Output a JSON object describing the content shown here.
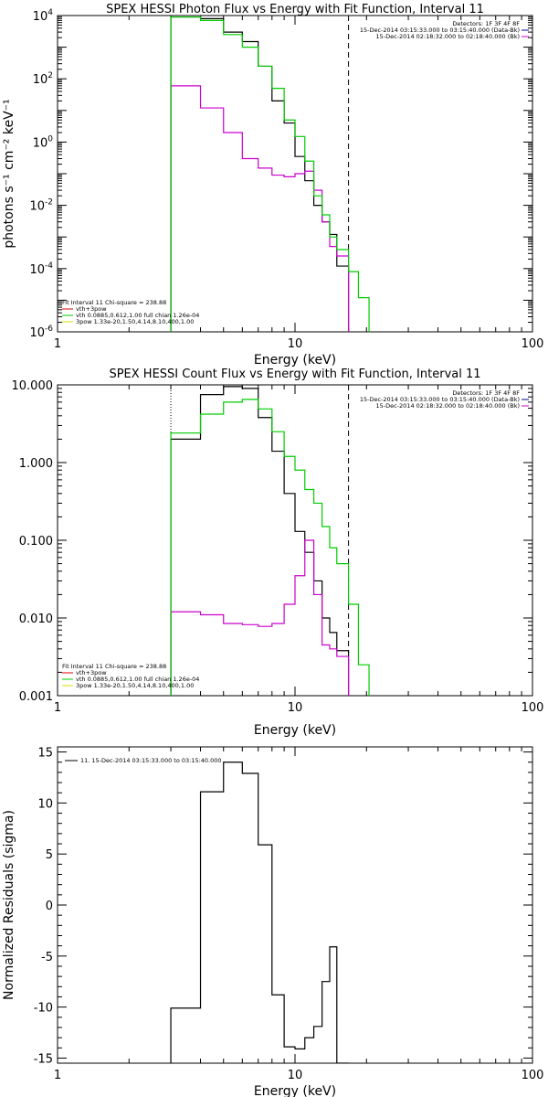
{
  "colors": {
    "black": "#000000",
    "green": "#00cc00",
    "magenta": "#cc00cc",
    "red": "#dd0000",
    "yellow": "#dddd00",
    "navy": "#000088"
  },
  "chart_data": [
    {
      "id": "photon",
      "type": "line",
      "title": "SPEX HESSI Photon Flux vs Energy with Fit Function, Interval 11",
      "xlabel": "Energy (keV)",
      "ylabel": "photons s⁻¹ cm⁻² keV⁻¹",
      "x_scale": "log",
      "y_scale": "log",
      "xlim": [
        1,
        100
      ],
      "ylim": [
        1e-06,
        10000.0
      ],
      "x_ticks": [
        {
          "v": 1,
          "label": "1"
        },
        {
          "v": 10,
          "label": "10"
        },
        {
          "v": 100,
          "label": "100"
        }
      ],
      "y_ticks": [
        {
          "v": 1e-06,
          "base": "10",
          "exp": "-6"
        },
        {
          "v": 0.0001,
          "base": "10",
          "exp": "-4"
        },
        {
          "v": 0.01,
          "base": "10",
          "exp": "-2"
        },
        {
          "v": 1,
          "base": "10",
          "exp": "0"
        },
        {
          "v": 100,
          "base": "10",
          "exp": "2"
        },
        {
          "v": 10000.0,
          "base": "10",
          "exp": "4"
        }
      ],
      "vlines": [
        {
          "x": 3.0,
          "style": "dotted"
        },
        {
          "x": 16.8,
          "style": "dashed"
        }
      ],
      "info_lines": [
        "Detectors: 1F 3F 4F 8F",
        "15-Dec-2014 03:15:33.000 to 03:15:40.000 (Data-Bk)",
        "15-Dec-2014 02:18:32.000 to 02:18:40.000 (Bk)"
      ],
      "legend_title": "Fit Interval 11    Chi-square = 238.88",
      "legend": [
        {
          "text": "vth+3pow",
          "color": "red"
        },
        {
          "text": "vth 0.0885,0.612,1.00  full chian 1.26e-04",
          "color": "green"
        },
        {
          "text": "3pow 1.33e-20,1.50,4.14,8.10,400,1.00",
          "color": "yellow"
        }
      ],
      "series": [
        {
          "name": "Data-Bk",
          "color": "black",
          "edges": [
            3.0,
            4.0,
            5.0,
            6.0,
            7.0,
            8.0,
            9.0,
            10.0,
            11.0,
            12.0,
            13.0,
            14.0,
            15.0,
            16.8
          ],
          "values": [
            9000,
            8000,
            3000,
            1500,
            250,
            20,
            4,
            0.35,
            0.06,
            0.01,
            0.003,
            0.0012,
            0.00012
          ]
        },
        {
          "name": "Bk",
          "color": "magenta",
          "edges": [
            3.0,
            4.0,
            5.0,
            6.0,
            7.0,
            8.0,
            9.0,
            10.0,
            11.0,
            12.0,
            13.0,
            14.0,
            15.0,
            16.8
          ],
          "values": [
            60,
            12,
            2,
            0.3,
            0.15,
            0.09,
            0.08,
            0.1,
            0.12,
            0.03,
            0.003,
            0.0005,
            0.00025
          ]
        },
        {
          "name": "Fit",
          "color": "green",
          "edges": [
            3.0,
            4.0,
            5.0,
            6.0,
            7.0,
            8.0,
            9.0,
            10.0,
            11.0,
            12.0,
            13.0,
            14.0,
            15.0,
            16.8,
            18.5,
            20.5
          ],
          "values": [
            9000,
            7000,
            2500,
            1000,
            250,
            50,
            5,
            1.5,
            0.25,
            0.02,
            0.005,
            0.001,
            0.0004,
            8e-05,
            1.2e-05
          ]
        }
      ]
    },
    {
      "id": "count",
      "type": "line",
      "title": "SPEX HESSI Count Flux vs Energy with Fit Function, Interval 11",
      "xlabel": "Energy (keV)",
      "ylabel": "",
      "x_scale": "log",
      "y_scale": "log",
      "xlim": [
        1,
        100
      ],
      "ylim": [
        0.001,
        10
      ],
      "x_ticks": [
        {
          "v": 1,
          "label": "1"
        },
        {
          "v": 10,
          "label": "10"
        },
        {
          "v": 100,
          "label": "100"
        }
      ],
      "y_ticks": [
        {
          "v": 0.001,
          "label": "0.001"
        },
        {
          "v": 0.01,
          "label": "0.010"
        },
        {
          "v": 0.1,
          "label": "0.100"
        },
        {
          "v": 1,
          "label": "1.000"
        },
        {
          "v": 10,
          "label": "10.000"
        }
      ],
      "vlines": [
        {
          "x": 3.0,
          "style": "dotted"
        },
        {
          "x": 16.8,
          "style": "dashed"
        }
      ],
      "info_lines": [
        "Detectors: 1F 3F 4F 8F",
        "15-Dec-2014 03:15:33.000 to 03:15:40.000 (Data-Bk)",
        "15-Dec-2014 02:18:32.000 to 02:18:40.000 (Bk)"
      ],
      "legend_title": "Fit Interval 11    Chi-square = 238.88",
      "legend": [
        {
          "text": "vth+3pow",
          "color": "red"
        },
        {
          "text": "vth 0.0885,0.612,1.00  full chian 1.26e-04",
          "color": "green"
        },
        {
          "text": "3pow 1.33e-20,1.50,4.14,8.10,400,1.00",
          "color": "yellow"
        }
      ],
      "series": [
        {
          "name": "Data-Bk",
          "color": "black",
          "edges": [
            3.0,
            4.0,
            5.0,
            6.0,
            7.0,
            8.0,
            9.0,
            10.0,
            11.0,
            12.0,
            13.0,
            14.0,
            15.0,
            16.8
          ],
          "values": [
            2.0,
            7.5,
            9.5,
            9.0,
            3.8,
            1.4,
            0.4,
            0.13,
            0.07,
            0.03,
            0.01,
            0.0065,
            0.0038
          ]
        },
        {
          "name": "Bk",
          "color": "magenta",
          "edges": [
            3.0,
            4.0,
            5.0,
            6.0,
            7.0,
            8.0,
            9.0,
            10.0,
            11.0,
            12.0,
            13.0,
            14.0,
            15.0,
            16.8
          ],
          "values": [
            0.012,
            0.011,
            0.0085,
            0.0082,
            0.0078,
            0.0085,
            0.015,
            0.035,
            0.1,
            0.02,
            0.0045,
            0.004,
            0.0032
          ]
        },
        {
          "name": "Fit",
          "color": "green",
          "edges": [
            3.0,
            4.0,
            5.0,
            6.0,
            7.0,
            8.0,
            9.0,
            10.0,
            11.0,
            12.0,
            13.0,
            14.0,
            15.0,
            16.8,
            18.5,
            20.5
          ],
          "values": [
            2.4,
            4.2,
            6.0,
            6.5,
            4.9,
            2.5,
            1.2,
            0.8,
            0.45,
            0.3,
            0.15,
            0.08,
            0.05,
            0.015,
            0.0025
          ]
        }
      ]
    },
    {
      "id": "resid",
      "type": "line",
      "title": "",
      "xlabel": "Energy (keV)",
      "ylabel": "Normalized Residuals (sigma)",
      "x_scale": "log",
      "y_scale": "linear",
      "xlim": [
        1,
        100
      ],
      "ylim": [
        -15.5,
        15.5
      ],
      "x_ticks": [
        {
          "v": 1,
          "label": "1"
        },
        {
          "v": 10,
          "label": "10"
        },
        {
          "v": 100,
          "label": "100"
        }
      ],
      "y_ticks": [
        {
          "v": -15,
          "label": "-15"
        },
        {
          "v": -10,
          "label": "-10"
        },
        {
          "v": -5,
          "label": "-5"
        },
        {
          "v": 0,
          "label": "0"
        },
        {
          "v": 5,
          "label": "5"
        },
        {
          "v": 10,
          "label": "10"
        },
        {
          "v": 15,
          "label": "15"
        }
      ],
      "vlines": [],
      "legend": [
        {
          "text": "11. 15-Dec-2014 03:15:33.000 to 03:15:40.000",
          "color": "black"
        }
      ],
      "series": [
        {
          "name": "Residuals",
          "color": "black",
          "edges": [
            3.0,
            4.0,
            5.0,
            6.0,
            7.0,
            8.0,
            9.0,
            10.0,
            11.0,
            12.0,
            13.0,
            14.0,
            15.0,
            16.8
          ],
          "values": [
            -10.1,
            11.1,
            14.0,
            12.9,
            5.9,
            -8.8,
            -13.9,
            -14.1,
            -13.0,
            -11.9,
            -7.5,
            -4.1,
            -15.5
          ],
          "start_from": -15.5
        }
      ]
    }
  ]
}
